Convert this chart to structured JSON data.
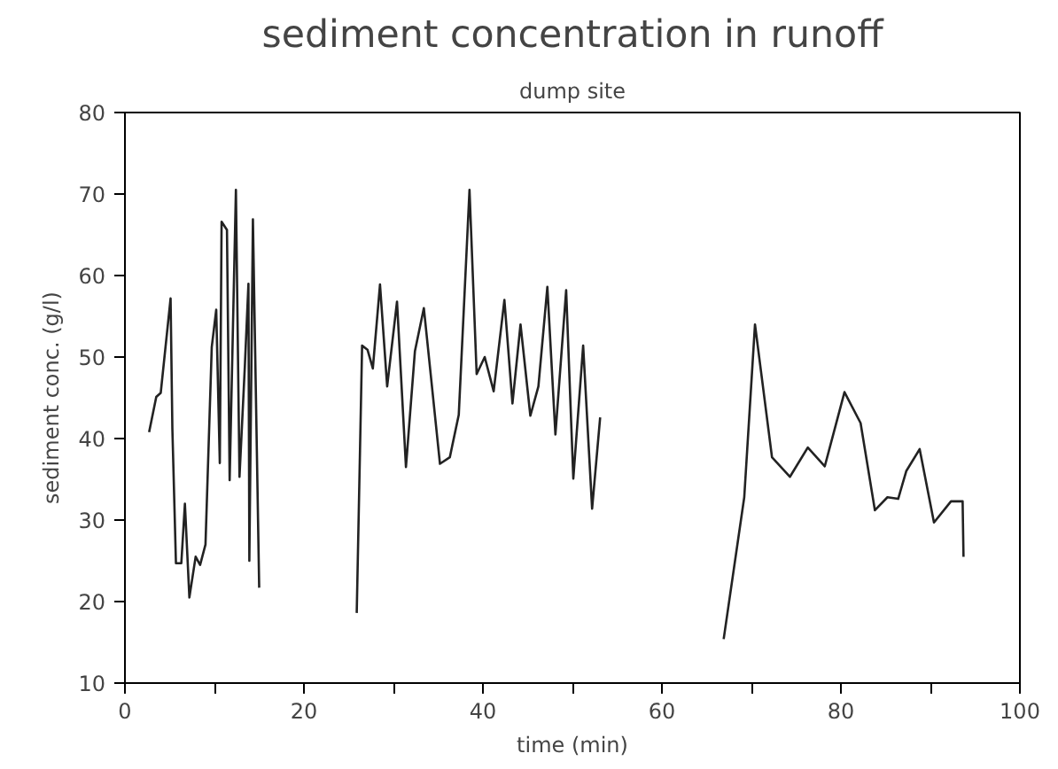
{
  "chart_data": {
    "type": "line",
    "title": "sediment concentration in runoff",
    "subtitle": "dump site",
    "xlabel": "time (min)",
    "ylabel": "sediment conc. (g/l)",
    "series": [
      {
        "color": "#222222",
        "x": [
          2.7,
          3.5,
          4.0,
          5.1,
          5.3,
          5.7,
          6.3,
          6.7,
          7.2,
          7.9,
          8.4,
          9.0,
          9.7,
          10.2,
          10.6,
          10.8,
          11.4,
          11.7,
          12.4,
          12.8,
          13.4,
          13.8,
          13.9,
          14.3,
          15.0
        ],
        "values": [
          40.8,
          45.1,
          45.6,
          57.2,
          41.2,
          24.7,
          24.7,
          32.0,
          20.5,
          25.5,
          24.5,
          27,
          51.2,
          55.8,
          37,
          66.6,
          65.6,
          34.9,
          70.5,
          35.3,
          48.9,
          59,
          25,
          66.9,
          21.7
        ]
      },
      {
        "color": "#222222",
        "x": [
          25.9,
          26.5,
          27.1,
          27.7,
          28.5,
          29.3,
          30.4,
          31.4,
          32.4,
          33.4,
          35.2,
          36.3,
          37.3,
          38.5,
          39.3,
          40.2,
          41.2,
          42.4,
          43.3,
          44.2,
          45.3,
          46.2,
          47.2,
          48.1,
          49.3,
          50.1,
          51.2,
          52.2,
          53.1
        ],
        "values": [
          18.6,
          51.4,
          50.9,
          48.6,
          58.9,
          46.4,
          56.8,
          36.5,
          50.7,
          56,
          36.9,
          37.7,
          42.9,
          70.5,
          47.9,
          50,
          45.8,
          57,
          44.3,
          54,
          42.8,
          46.4,
          58.6,
          40.5,
          58.2,
          35.1,
          51.4,
          31.4,
          42.6
        ]
      },
      {
        "color": "#222222",
        "x": [
          66.9,
          69.2,
          70.4,
          72.3,
          74.3,
          76.3,
          78.2,
          80.4,
          82.2,
          83.8,
          85.2,
          86.4,
          87.3,
          88.8,
          90.4,
          92.3,
          93.6,
          93.7
        ],
        "values": [
          15.4,
          32.8,
          54,
          37.7,
          35.3,
          38.9,
          36.6,
          45.7,
          41.9,
          31.2,
          32.8,
          32.6,
          36,
          38.7,
          29.7,
          32.3,
          32.3,
          25.5
        ]
      }
    ],
    "xlim": [
      0,
      100
    ],
    "xticks": [
      0,
      {
        "value": 10,
        "label": null
      },
      20,
      {
        "value": 30,
        "label": null
      },
      40,
      {
        "value": 50,
        "label": null
      },
      60,
      {
        "value": 70,
        "label": null
      },
      80,
      {
        "value": 90,
        "label": null
      },
      100
    ],
    "ylim": [
      10,
      80
    ],
    "yticks": [
      10,
      20,
      30,
      40,
      50,
      60,
      70,
      80
    ],
    "marker": "none",
    "line_style": "solid"
  }
}
